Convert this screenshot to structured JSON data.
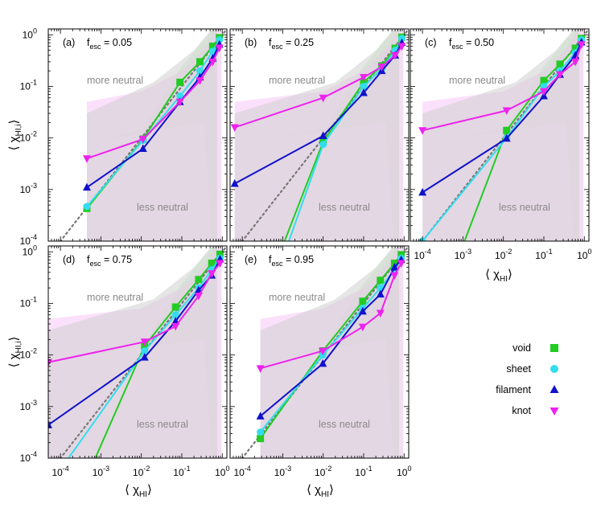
{
  "figure": {
    "xlabel": "⟨ χ",
    "xlabel_sub": "HI",
    "xlabel_close": "⟩",
    "ylabel": "⟨ χ",
    "ylabel_sub": "HI,i",
    "ylabel_close": "⟩",
    "region_upper": "more neutral",
    "region_lower": "less neutral",
    "legend": [
      "void",
      "sheet",
      "filament",
      "knot"
    ],
    "x_tick_labels": [
      "10",
      "10",
      "10",
      "10",
      "10"
    ],
    "x_tick_exps": [
      "-4",
      "-3",
      "-2",
      "-1",
      "0"
    ],
    "y_tick_labels": [
      "10",
      "10",
      "10",
      "10",
      "10"
    ],
    "y_tick_exps": [
      "-4",
      "-3",
      "-2",
      "-1",
      "0"
    ]
  },
  "colors": {
    "void": "#22cc22",
    "sheet": "#33ddee",
    "filament": "#1111cc",
    "knot": "#ee22ee",
    "one_to_one": "#777777",
    "green_band": "#d9f7d9",
    "magenta_band": "#f9d6f9",
    "grey_band": "#d0d0d0"
  },
  "chart_data": [
    {
      "type": "line",
      "panel": "a",
      "label": "(a)",
      "fesc": "f",
      "fesc_sub": "esc",
      "fesc_val": " = 0.05",
      "xscale": "log",
      "yscale": "log",
      "xlim": [
        5e-05,
        1.3
      ],
      "ylim": [
        0.0001,
        1.3
      ],
      "series": [
        {
          "name": "void",
          "x": [
            0.00045,
            0.011,
            0.09,
            0.28,
            0.58,
            0.85
          ],
          "y": [
            0.00043,
            0.0095,
            0.12,
            0.3,
            0.6,
            0.88
          ]
        },
        {
          "name": "sheet",
          "x": [
            0.00045,
            0.011,
            0.09,
            0.28,
            0.58,
            0.85
          ],
          "y": [
            0.00047,
            0.009,
            0.065,
            0.2,
            0.48,
            0.8
          ]
        },
        {
          "name": "filament",
          "x": [
            0.00045,
            0.011,
            0.09,
            0.28,
            0.58,
            0.85
          ],
          "y": [
            0.0011,
            0.0062,
            0.05,
            0.15,
            0.35,
            0.65
          ]
        },
        {
          "name": "knot",
          "x": [
            0.00045,
            0.011,
            0.09,
            0.28,
            0.58,
            0.85
          ],
          "y": [
            0.004,
            0.0095,
            0.05,
            0.13,
            0.3,
            0.56
          ]
        }
      ]
    },
    {
      "type": "line",
      "panel": "b",
      "label": "(b)",
      "fesc": "f",
      "fesc_sub": "esc",
      "fesc_val": " = 0.25",
      "xscale": "log",
      "yscale": "log",
      "xlim": [
        5e-05,
        1.3
      ],
      "ylim": [
        0.0001,
        1.3
      ],
      "series": [
        {
          "name": "void",
          "x": [
            0.0005,
            0.01,
            0.1,
            0.28,
            0.6,
            0.88
          ],
          "y": [
            2e-05,
            0.0085,
            0.12,
            0.25,
            0.55,
            0.9
          ]
        },
        {
          "name": "sheet",
          "x": [
            0.0005,
            0.01,
            0.1,
            0.28,
            0.6,
            0.88
          ],
          "y": [
            1e-05,
            0.0075,
            0.1,
            0.22,
            0.5,
            0.85
          ]
        },
        {
          "name": "filament",
          "x": [
            6.5e-05,
            0.01,
            0.1,
            0.28,
            0.6,
            0.88
          ],
          "y": [
            0.0013,
            0.011,
            0.075,
            0.2,
            0.4,
            0.7
          ]
        },
        {
          "name": "knot",
          "x": [
            6.5e-05,
            0.01,
            0.1,
            0.28,
            0.6,
            0.88
          ],
          "y": [
            0.016,
            0.06,
            0.15,
            0.24,
            0.4,
            0.6
          ]
        }
      ]
    },
    {
      "type": "line",
      "panel": "c",
      "label": "(c)",
      "fesc": "f",
      "fesc_sub": "esc",
      "fesc_val": " = 0.50",
      "xscale": "log",
      "yscale": "log",
      "xlim": [
        5e-05,
        1.3
      ],
      "ylim": [
        0.0001,
        1.3
      ],
      "series": [
        {
          "name": "void",
          "x": [
            0.0005,
            0.012,
            0.1,
            0.25,
            0.6,
            0.85
          ],
          "y": [
            2e-05,
            0.014,
            0.13,
            0.27,
            0.55,
            0.85
          ]
        },
        {
          "name": "sheet",
          "x": [
            0.0001,
            0.012,
            0.1,
            0.25,
            0.6,
            0.85
          ],
          "y": [
            0.0001,
            0.01,
            0.1,
            0.2,
            0.45,
            0.8
          ]
        },
        {
          "name": "filament",
          "x": [
            0.0001,
            0.012,
            0.1,
            0.25,
            0.6,
            0.85
          ],
          "y": [
            0.00088,
            0.0098,
            0.065,
            0.17,
            0.4,
            0.72
          ]
        },
        {
          "name": "knot",
          "x": [
            0.0001,
            0.012,
            0.1,
            0.25,
            0.6,
            0.85
          ],
          "y": [
            0.014,
            0.034,
            0.08,
            0.17,
            0.3,
            0.65
          ]
        }
      ]
    },
    {
      "type": "line",
      "panel": "d",
      "label": "(d)",
      "fesc": "f",
      "fesc_sub": "esc",
      "fesc_val": " = 0.75",
      "xscale": "log",
      "yscale": "log",
      "xlim": [
        5e-05,
        1.3
      ],
      "ylim": [
        0.0001,
        1.3
      ],
      "series": [
        {
          "name": "void",
          "x": [
            0.0002,
            0.012,
            0.07,
            0.26,
            0.55,
            0.88
          ],
          "y": [
            1e-05,
            0.015,
            0.085,
            0.29,
            0.6,
            0.9
          ]
        },
        {
          "name": "sheet",
          "x": [
            0.0001,
            0.012,
            0.07,
            0.26,
            0.55,
            0.88
          ],
          "y": [
            6e-05,
            0.012,
            0.06,
            0.2,
            0.45,
            0.75
          ]
        },
        {
          "name": "filament",
          "x": [
            5e-05,
            0.012,
            0.07,
            0.26,
            0.55,
            0.88
          ],
          "y": [
            0.00044,
            0.009,
            0.045,
            0.18,
            0.35,
            0.72
          ]
        },
        {
          "name": "knot",
          "x": [
            5e-05,
            0.012,
            0.07,
            0.26,
            0.55,
            0.88
          ],
          "y": [
            0.0072,
            0.018,
            0.036,
            0.14,
            0.38,
            0.6
          ]
        }
      ]
    },
    {
      "type": "line",
      "panel": "e",
      "label": "(e)",
      "fesc": "f",
      "fesc_sub": "esc",
      "fesc_val": " = 0.95",
      "xscale": "log",
      "yscale": "log",
      "xlim": [
        5e-05,
        1.3
      ],
      "ylim": [
        0.0001,
        1.3
      ],
      "series": [
        {
          "name": "void",
          "x": [
            0.00028,
            0.0098,
            0.095,
            0.26,
            0.58,
            0.85
          ],
          "y": [
            0.00024,
            0.012,
            0.11,
            0.28,
            0.6,
            0.88
          ]
        },
        {
          "name": "sheet",
          "x": [
            0.00028,
            0.0098,
            0.095,
            0.26,
            0.58,
            0.85
          ],
          "y": [
            0.00032,
            0.01,
            0.08,
            0.2,
            0.45,
            0.75
          ]
        },
        {
          "name": "filament",
          "x": [
            0.00028,
            0.0098,
            0.095,
            0.26,
            0.58,
            0.85
          ],
          "y": [
            0.00065,
            0.0068,
            0.07,
            0.15,
            0.5,
            0.7
          ]
        },
        {
          "name": "knot",
          "x": [
            0.00028,
            0.0098,
            0.095,
            0.26,
            0.58,
            0.85
          ],
          "y": [
            0.0055,
            0.012,
            0.035,
            0.065,
            0.35,
            0.6
          ]
        }
      ]
    }
  ]
}
